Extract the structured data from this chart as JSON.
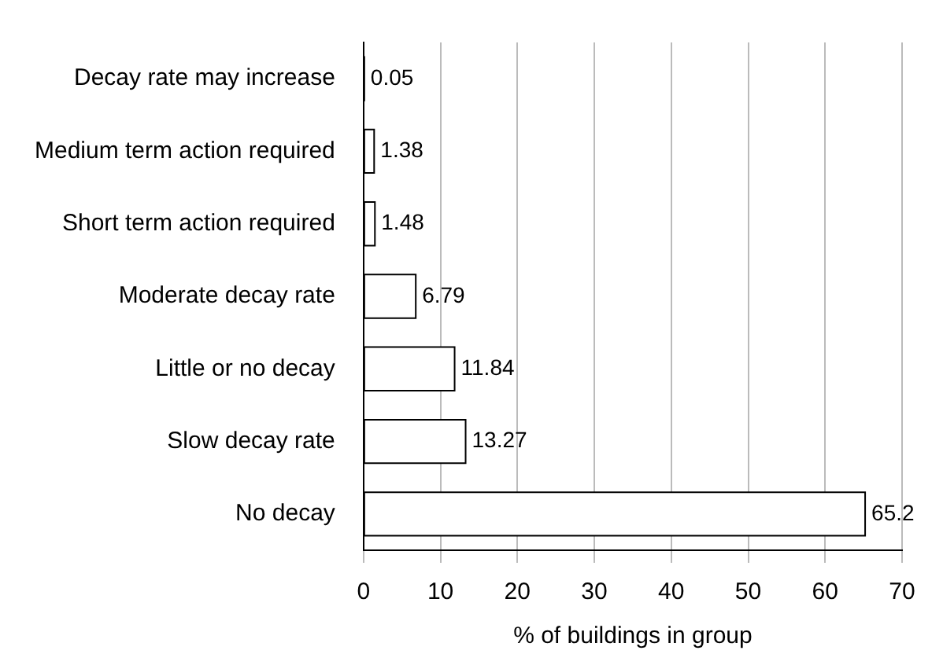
{
  "chart_data": {
    "type": "bar",
    "orientation": "horizontal",
    "categories": [
      "Decay rate may increase",
      "Medium term action required",
      "Short term action required",
      "Moderate decay rate",
      "Little or no decay",
      "Slow decay rate",
      "No decay"
    ],
    "values": [
      0.05,
      1.38,
      1.48,
      6.79,
      11.84,
      13.27,
      65.2
    ],
    "color": "#ffffff",
    "xlabel": "% of buildings in group",
    "xlim": [
      0,
      70
    ],
    "xticks": [
      0,
      10,
      20,
      30,
      40,
      50,
      60,
      70
    ],
    "grid": "x",
    "data_labels": true,
    "legend": false
  }
}
